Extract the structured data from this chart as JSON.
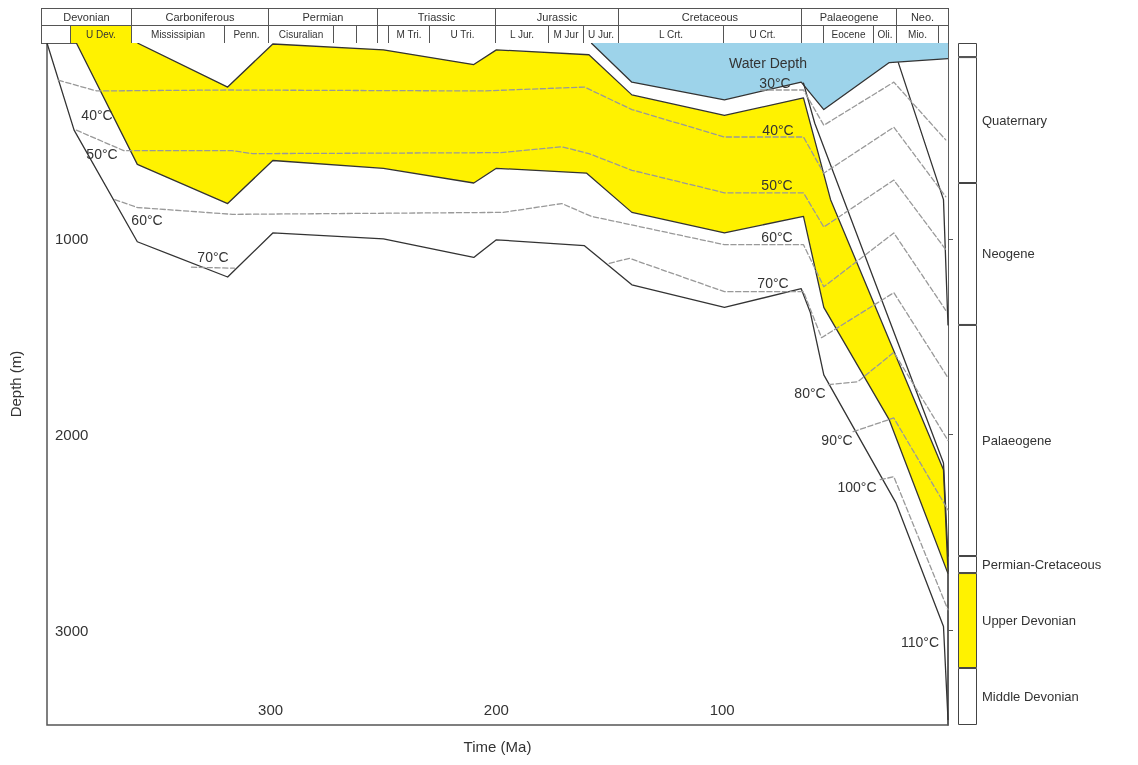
{
  "chart_data": [
    {
      "type": "other",
      "annotations": [
        "Devonian",
        "Carboniferous",
        "Permian",
        "Triassic",
        "Jurassic",
        "Cretaceous",
        "Palaeogene",
        "Neo.",
        "U Dev.",
        "Mississipian",
        "Penn.",
        "Cisuralian",
        "M Tri.",
        "U Tri.",
        "L Jur.",
        "M Jur",
        "U Jur.",
        "L Crt.",
        "U Crt.",
        "Eocene",
        "Oli.",
        "Mio."
      ]
    },
    {
      "type": "line",
      "xlabel": "Time (Ma)",
      "ylabel": "Depth (m)",
      "xlim": [
        399,
        0
      ],
      "ylim": [
        3483,
        0
      ],
      "xticks": [
        300,
        200,
        100
      ],
      "yticks": [
        1000,
        2000,
        3000
      ],
      "marker": "none",
      "series": [
        {
          "type": "area",
          "color": "#fff200",
          "x": [
            386,
            359,
            319,
            299,
            250,
            210,
            200,
            160,
            140,
            99,
            64,
            55,
            26,
            0
          ],
          "values": [
            0,
            620,
            820,
            600,
            640,
            715,
            640,
            665,
            865,
            970,
            885,
            1350,
            1925,
            2710
          ]
        },
        {
          "type": "area",
          "color": "#ffffff",
          "x": [
            359,
            319,
            299,
            250,
            210,
            200,
            159,
            140,
            99,
            64,
            52,
            2,
            0
          ],
          "values": [
            0,
            225,
            5,
            35,
            110,
            35,
            60,
            265,
            370,
            280,
            800,
            2180,
            2700
          ]
        },
        {
          "type": "area",
          "color": "#9dd3ea",
          "x": [
            158,
            140,
            99,
            65,
            55,
            26,
            0
          ],
          "values": [
            0,
            200,
            290,
            200,
            340,
            100,
            80
          ]
        },
        {
          "type": "line",
          "color": "#333333",
          "line_style": "solid",
          "x": [
            399,
            387,
            359,
            319,
            299,
            250,
            210,
            200,
            161,
            140,
            99,
            65,
            61,
            55,
            23,
            2,
            0
          ],
          "values": [
            0,
            445,
            1015,
            1195,
            970,
            1000,
            1095,
            1005,
            1035,
            1235,
            1350,
            1255,
            1375,
            1695,
            2350,
            2980,
            3455
          ]
        },
        {
          "type": "line",
          "color": "#333333",
          "line_style": "solid",
          "x": [
            64,
            59,
            2,
            0
          ],
          "values": [
            205,
            410,
            2145,
            2620
          ]
        },
        {
          "type": "line",
          "color": "#333333",
          "line_style": "solid",
          "x": [
            22,
            2,
            0
          ],
          "values": [
            100,
            800,
            1440
          ]
        },
        {
          "type": "line",
          "color": "#999999",
          "line_style": "dashed",
          "x": [
            83,
            64,
            55,
            24,
            1
          ],
          "values": [
            240,
            240,
            420,
            200,
            495
          ]
        },
        {
          "type": "line",
          "color": "#999999",
          "line_style": "dashed",
          "x": [
            394,
            377,
            319,
            206,
            161,
            140,
            99,
            64,
            55,
            24,
            1
          ],
          "values": [
            190,
            245,
            240,
            245,
            225,
            340,
            480,
            480,
            665,
            430,
            785
          ]
        },
        {
          "type": "line",
          "color": "#999999",
          "line_style": "dashed",
          "x": [
            386,
            365,
            317,
            308,
            198,
            171,
            159,
            140,
            99,
            64,
            55,
            24,
            1
          ],
          "values": [
            445,
            550,
            550,
            565,
            560,
            530,
            565,
            650,
            765,
            765,
            940,
            700,
            1055
          ]
        },
        {
          "type": "line",
          "color": "#999999",
          "line_style": "dashed",
          "x": [
            369,
            359,
            317,
            197,
            171,
            158,
            99,
            64,
            55,
            24,
            1
          ],
          "values": [
            800,
            840,
            875,
            865,
            820,
            885,
            1030,
            1030,
            1245,
            970,
            1365
          ]
        },
        {
          "type": "line",
          "color": "#999999",
          "line_style": "dashed",
          "x": [
            335,
            316,
            250,
            150,
            141,
            99,
            64,
            56,
            24,
            0
          ],
          "values": [
            1145,
            1150,
            null,
            1125,
            1100,
            1270,
            1270,
            1505,
            1275,
            1710
          ]
        },
        {
          "type": "line",
          "color": "#999999",
          "line_style": "dashed",
          "x": [
            53,
            40,
            24,
            0
          ],
          "values": [
            1745,
            1730,
            1580,
            2030
          ]
        },
        {
          "type": "line",
          "color": "#999999",
          "line_style": "dashed",
          "x": [
            42,
            24,
            0
          ],
          "values": [
            1985,
            1915,
            2385
          ]
        },
        {
          "type": "line",
          "color": "#999999",
          "line_style": "dashed",
          "x": [
            30,
            24,
            0
          ],
          "values": [
            2230,
            2215,
            2895
          ]
        }
      ],
      "annotations": [
        "Water Depth",
        "30°C",
        "40°C",
        "40°C",
        "50°C",
        "50°C",
        "60°C",
        "60°C",
        "70°C",
        "70°C",
        "80°C",
        "90°C",
        "100°C",
        "110°C"
      ]
    },
    {
      "type": "bar",
      "stacked": true,
      "categories": [
        null
      ],
      "ylim": [
        3483,
        0
      ],
      "yticks": [
        1000,
        2000,
        3000
      ],
      "tick_labels": false,
      "series": [
        {
          "color": "#ffffff",
          "values": [
            72
          ]
        },
        {
          "name": "Quaternary",
          "color": "#ffffff",
          "values": [
            643
          ]
        },
        {
          "name": "Neogene",
          "color": "#ffffff",
          "values": [
            725
          ]
        },
        {
          "name": "Palaeogene",
          "color": "#ffffff",
          "values": [
            1180
          ]
        },
        {
          "name": "Permian-Cretaceous",
          "color": "#ffffff",
          "values": [
            87
          ]
        },
        {
          "name": "Upper Devonian",
          "color": "#fff200",
          "values": [
            485
          ]
        },
        {
          "name": "Middle Devonian",
          "color": "#ffffff",
          "values": [
            291
          ]
        }
      ]
    }
  ]
}
